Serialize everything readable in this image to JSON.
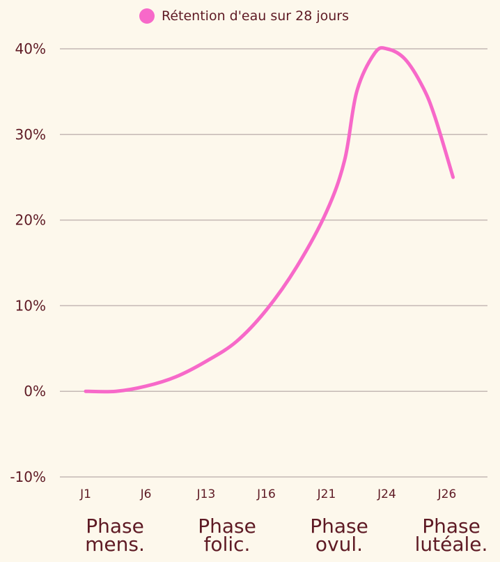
{
  "colors": {
    "background": "#fdf8ec",
    "text": "#5e1a24",
    "grid": "#c4b8b4",
    "series": "#f769c9"
  },
  "legend": {
    "label": "Rétention d'eau sur 28 jours"
  },
  "phases": [
    {
      "line1": "Phase",
      "line2": "mens."
    },
    {
      "line1": "Phase",
      "line2": "folic."
    },
    {
      "line1": "Phase",
      "line2": "ovul."
    },
    {
      "line1": "Phase",
      "line2": "lutéale."
    }
  ],
  "chart_data": {
    "type": "line",
    "categories": [
      "J1",
      "J6",
      "J13",
      "J16",
      "J21",
      "J24",
      "J26"
    ],
    "y_ticks": [
      "40%",
      "30%",
      "20%",
      "10%",
      "0%",
      "-10%"
    ],
    "ylim": [
      -10,
      40
    ],
    "grid": true,
    "legend_position": "top-center",
    "series": [
      {
        "name": "Rétention d'eau sur 28 jours",
        "x": [
          0,
          0.5,
          1,
          1.5,
          2,
          2.5,
          3,
          3.5,
          4,
          4.3,
          4.5,
          4.8,
          5,
          5.3,
          5.6,
          5.8,
          6.1
        ],
        "values": [
          0,
          0,
          0.6,
          1.7,
          3.5,
          5.8,
          9.5,
          14.5,
          21,
          27,
          35,
          39.5,
          40,
          38.8,
          35.5,
          32,
          25
        ]
      }
    ]
  }
}
